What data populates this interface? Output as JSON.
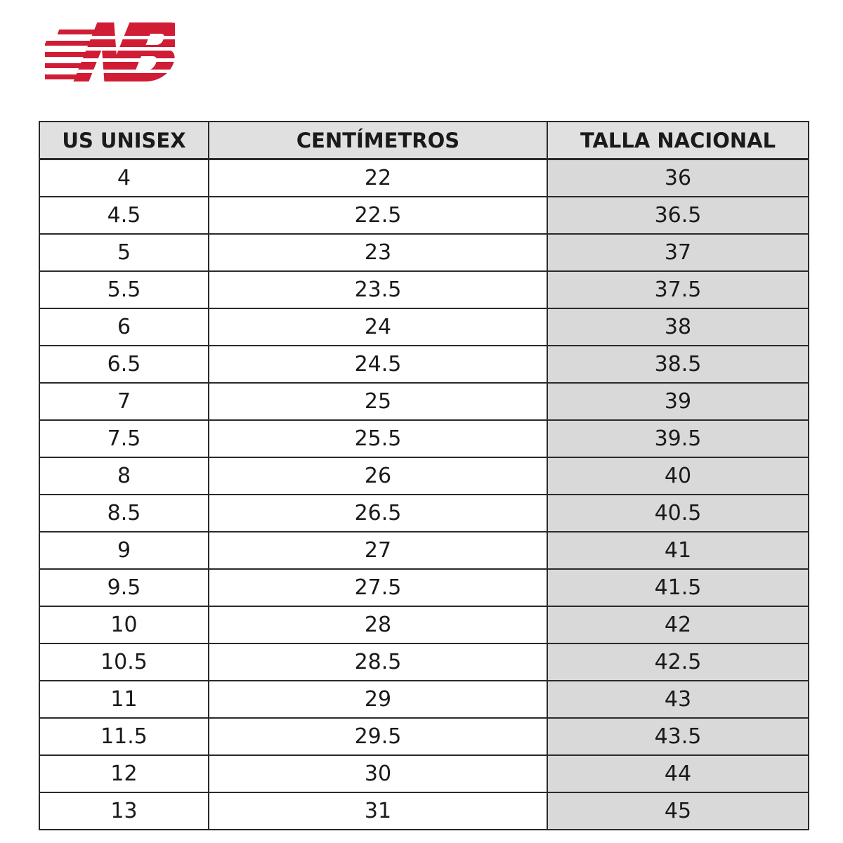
{
  "table": {
    "headers": [
      "US UNISEX",
      "CENTÍMETROS",
      "TALLA NACIONAL"
    ],
    "rows": [
      [
        "4",
        "22",
        "36"
      ],
      [
        "4.5",
        "22.5",
        "36.5"
      ],
      [
        "5",
        "23",
        "37"
      ],
      [
        "5.5",
        "23.5",
        "37.5"
      ],
      [
        "6",
        "24",
        "38"
      ],
      [
        "6.5",
        "24.5",
        "38.5"
      ],
      [
        "7",
        "25",
        "39"
      ],
      [
        "7.5",
        "25.5",
        "39.5"
      ],
      [
        "8",
        "26",
        "40"
      ],
      [
        "8.5",
        "26.5",
        "40.5"
      ],
      [
        "9",
        "27",
        "41"
      ],
      [
        "9.5",
        "27.5",
        "41.5"
      ],
      [
        "10",
        "28",
        "42"
      ],
      [
        "10.5",
        "28.5",
        "42.5"
      ],
      [
        "11",
        "29",
        "43"
      ],
      [
        "11.5",
        "29.5",
        "43.5"
      ],
      [
        "12",
        "30",
        "44"
      ],
      [
        "13",
        "31",
        "45"
      ]
    ]
  }
}
